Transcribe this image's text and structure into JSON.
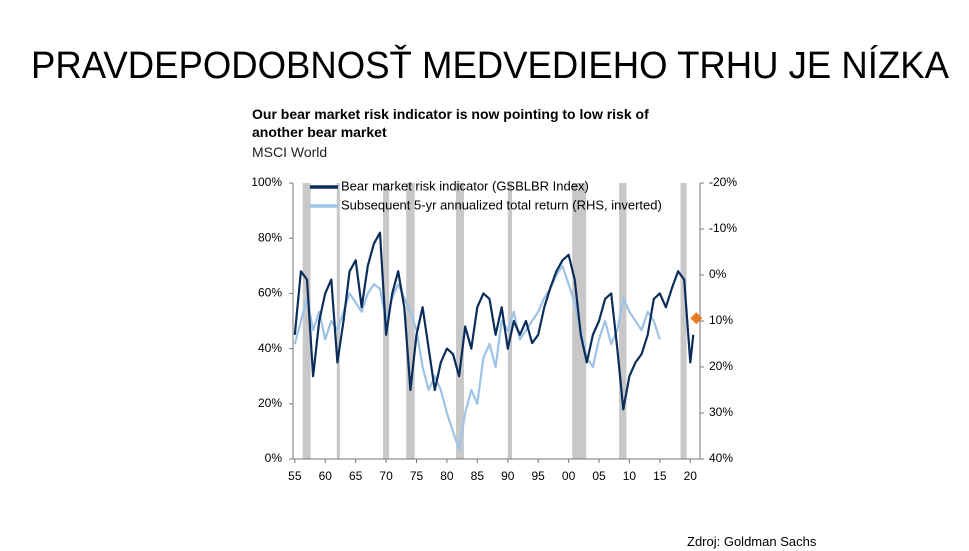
{
  "title": "PRAVDEPODOBNOSŤ MEDVEDIEHO TRHU JE NÍZKA",
  "source": "Zdroj: Goldman Sachs",
  "chart_data": {
    "type": "line",
    "title": "Our bear market risk indicator is now pointing to low risk of another bear market",
    "subtitle": "MSCI World",
    "xlim": [
      1954.7,
      2021.6
    ],
    "xticks": [
      {
        "value": 1955,
        "label": "55"
      },
      {
        "value": 1960,
        "label": "60"
      },
      {
        "value": 1965,
        "label": "65"
      },
      {
        "value": 1970,
        "label": "70"
      },
      {
        "value": 1975,
        "label": "75"
      },
      {
        "value": 1980,
        "label": "80"
      },
      {
        "value": 1985,
        "label": "85"
      },
      {
        "value": 1990,
        "label": "90"
      },
      {
        "value": 1995,
        "label": "95"
      },
      {
        "value": 2000,
        "label": "00"
      },
      {
        "value": 2005,
        "label": "05"
      },
      {
        "value": 2010,
        "label": "10"
      },
      {
        "value": 2015,
        "label": "15"
      },
      {
        "value": 2020,
        "label": "20"
      }
    ],
    "ylim": [
      0,
      100
    ],
    "yticks": [
      {
        "value": 0,
        "label": "0%"
      },
      {
        "value": 20,
        "label": "20%"
      },
      {
        "value": 40,
        "label": "40%"
      },
      {
        "value": 60,
        "label": "60%"
      },
      {
        "value": 80,
        "label": "80%"
      },
      {
        "value": 100,
        "label": "100%"
      }
    ],
    "y2lim": [
      -20,
      40
    ],
    "y2_inverted": true,
    "y2ticks": [
      {
        "value": -20,
        "label": "-20%"
      },
      {
        "value": -10,
        "label": "-10%"
      },
      {
        "value": 0,
        "label": "0%"
      },
      {
        "value": 10,
        "label": "10%"
      },
      {
        "value": 20,
        "label": "20%"
      },
      {
        "value": 30,
        "label": "30%"
      },
      {
        "value": 40,
        "label": "40%"
      }
    ],
    "recessions": [
      [
        1956.3,
        1957.6
      ],
      [
        1961.9,
        1962.4
      ],
      [
        1969.5,
        1970.5
      ],
      [
        1973.3,
        1974.7
      ],
      [
        1981.5,
        1982.8
      ],
      [
        1990.0,
        1990.7
      ],
      [
        2000.6,
        2002.9
      ],
      [
        2008.3,
        2009.5
      ],
      [
        2018.4,
        2019.4
      ]
    ],
    "recession_color": "#c8c8c8",
    "legend": "upper left",
    "series": [
      {
        "name": "Bear market risk indicator (GSBLBR Index)",
        "color": "#0b2d5b",
        "x": [
          1955,
          1956,
          1957,
          1958,
          1959,
          1960,
          1961,
          1962,
          1963,
          1964,
          1965,
          1966,
          1967,
          1968,
          1969,
          1970,
          1971,
          1972,
          1973,
          1974,
          1975,
          1976,
          1977,
          1978,
          1979,
          1980,
          1981,
          1982,
          1983,
          1984,
          1985,
          1986,
          1987,
          1988,
          1989,
          1990,
          1991,
          1992,
          1993,
          1994,
          1995,
          1996,
          1997,
          1998,
          1999,
          2000,
          2001,
          2002,
          2003,
          2004,
          2005,
          2006,
          2007,
          2008,
          2009,
          2010,
          2011,
          2012,
          2013,
          2014,
          2015,
          2016,
          2017,
          2018,
          2019,
          2020,
          2020.5
        ],
        "values": [
          45,
          68,
          65,
          30,
          50,
          60,
          65,
          35,
          50,
          68,
          72,
          55,
          70,
          78,
          82,
          45,
          60,
          68,
          55,
          25,
          45,
          55,
          40,
          25,
          35,
          40,
          38,
          30,
          48,
          40,
          55,
          60,
          58,
          45,
          55,
          40,
          50,
          45,
          50,
          42,
          45,
          55,
          62,
          68,
          72,
          74,
          65,
          45,
          35,
          45,
          50,
          58,
          60,
          40,
          18,
          30,
          35,
          38,
          45,
          58,
          60,
          55,
          62,
          68,
          65,
          35,
          45
        ]
      },
      {
        "name": "Subsequent 5-yr annualized total return (RHS, inverted)",
        "color": "#9dc3e6",
        "axis": "y2",
        "x": [
          1955,
          1956,
          1957,
          1958,
          1959,
          1960,
          1961,
          1962,
          1963,
          1964,
          1965,
          1966,
          1967,
          1968,
          1969,
          1970,
          1971,
          1972,
          1973,
          1974,
          1975,
          1976,
          1977,
          1978,
          1979,
          1980,
          1981,
          1982,
          1983,
          1984,
          1985,
          1986,
          1987,
          1988,
          1989,
          1990,
          1991,
          1992,
          1993,
          1994,
          1995,
          1996,
          1997,
          1998,
          1999,
          2000,
          2001,
          2002,
          2003,
          2004,
          2005,
          2006,
          2007,
          2008,
          2009,
          2010,
          2011,
          2012,
          2013,
          2014,
          2015
        ],
        "values": [
          15,
          10,
          5,
          12,
          8,
          14,
          10,
          12,
          8,
          4,
          6,
          8,
          4,
          2,
          3,
          10,
          5,
          2,
          5,
          8,
          12,
          20,
          25,
          22,
          25,
          30,
          34,
          38,
          30,
          25,
          28,
          18,
          15,
          20,
          10,
          12,
          8,
          14,
          12,
          10,
          8,
          5,
          3,
          0,
          -2,
          2,
          6,
          12,
          18,
          20,
          14,
          10,
          15,
          12,
          5,
          8,
          10,
          12,
          8,
          10,
          14
        ]
      }
    ],
    "marker": {
      "x": 2021,
      "value": 51,
      "color": "#e97b24"
    }
  }
}
